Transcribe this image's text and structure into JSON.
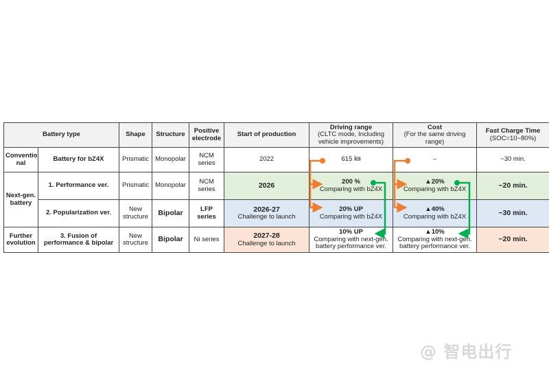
{
  "header": {
    "battery_type": "Battery type",
    "shape": "Shape",
    "structure": "Structure",
    "electrode_1": "Positive",
    "electrode_2": "electrode",
    "start": "Start of production",
    "range_title": "Driving range",
    "range_sub1": "(CLTC mode, Including",
    "range_sub2": "vehicle improvements)",
    "cost_title": "Cost",
    "cost_sub1": "(For the same driving",
    "cost_sub2": "range)",
    "charge_title": "Fast Charge Time",
    "charge_sub": "(SOC=10~80%)"
  },
  "groups": {
    "conventional_1": "Conventio",
    "conventional_2": "nal",
    "nextgen_1": "Next-gen.",
    "nextgen_2": "battery",
    "further_1": "Further",
    "further_2": "evolution"
  },
  "rows": [
    {
      "name": "Battery for bZ4X",
      "shape": "Prismatic",
      "structure": "Monopolar",
      "electrode": "NCM series",
      "start": "2022",
      "start_sub": "",
      "range": "615 ㎞",
      "range_sub": "",
      "cost": "–",
      "cost_sub": "",
      "charge": "~30 min."
    },
    {
      "name": "1. Performance ver.",
      "shape": "Prismatic",
      "structure": "Monopolar",
      "electrode": "NCM series",
      "start": "2026",
      "start_sub": "",
      "range": "200 %",
      "range_sub": "Comparing with bZ4X",
      "cost": "▲20%",
      "cost_sub": "Comparing with bZ4X",
      "charge": "~20 min."
    },
    {
      "name": "2. Popularization ver.",
      "shape_1": "New",
      "shape_2": "structure",
      "structure": "Bipolar",
      "electrode": "LFP series",
      "start": "2026-27",
      "start_sub": "Challenge to launch",
      "range": "20%  UP",
      "range_sub": "Comparing with bZ4X",
      "cost": "▲40%",
      "cost_sub": "Comparing with bZ4X",
      "charge": "~30 min."
    },
    {
      "name_1": "3. Fusion of",
      "name_2": "performance & bipolar",
      "shape_1": "New",
      "shape_2": "structure",
      "structure": "Bipolar",
      "electrode": "Ni series",
      "start": "2027-28",
      "start_sub": "Challenge to launch",
      "range": "10%  UP",
      "range_sub1": "Comparing with next-gen.",
      "range_sub2": "battery performance ver.",
      "cost": "▲10%",
      "cost_sub1": "Comparing with next-gen.",
      "cost_sub2": "battery performance ver.",
      "charge": "~20 min."
    }
  ],
  "watermark": "@ 智电出行",
  "colors": {
    "green_bg": "#e2efda",
    "blue_bg": "#dde8f4",
    "orange_bg": "#fbe4d6",
    "orange_arrow": "#ed7d31",
    "green_arrow": "#00b050"
  }
}
